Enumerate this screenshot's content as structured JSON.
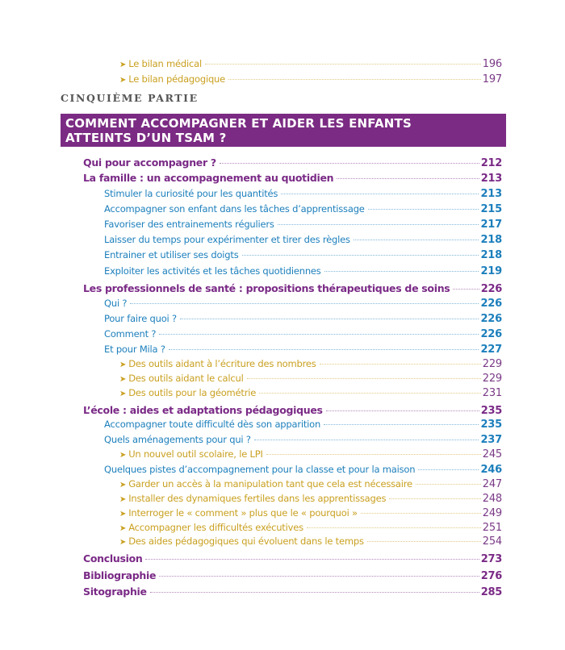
{
  "top_items": [
    {
      "label": "Le bilan médical",
      "page": "196"
    },
    {
      "label": "Le bilan pédagogique",
      "page": "197"
    }
  ],
  "part_label": "CINQUIÈME PARTIE",
  "part_title_line1": "COMMENT ACCOMPAGNER ET AIDER LES ENFANTS",
  "part_title_line2": "ATTEINTS D’UN TSAM ?",
  "colors": {
    "banner": "#7b2b83",
    "level1": "#7a2a86",
    "level2": "#1c7fbc",
    "level3": "#c9a020"
  },
  "entries": [
    {
      "level": 1,
      "label": "Qui pour accompagner ?",
      "page": "212"
    },
    {
      "level": 1,
      "label": "La famille : un accompagnement au quotidien",
      "page": "213"
    },
    {
      "level": 2,
      "label": "Stimuler la curiosité pour les quantités",
      "page": "213"
    },
    {
      "level": 2,
      "label": "Accompagner son enfant dans les tâches d’apprentissage",
      "page": "215"
    },
    {
      "level": 2,
      "label": "Favoriser des entrainements réguliers",
      "page": "217"
    },
    {
      "level": 2,
      "label": "Laisser du temps pour expérimenter et tirer des règles",
      "page": "218"
    },
    {
      "level": 2,
      "label": "Entrainer et utiliser ses doigts",
      "page": "218"
    },
    {
      "level": 2,
      "label": "Exploiter les activités et les tâches quotidiennes",
      "page": "219"
    },
    {
      "level": 1,
      "label": "Les professionnels de santé : propositions thérapeutiques de soins",
      "page": "226"
    },
    {
      "level": 2,
      "label": "Qui ?",
      "page": "226"
    },
    {
      "level": 2,
      "label": "Pour faire quoi ?",
      "page": "226"
    },
    {
      "level": 2,
      "label": "Comment ?",
      "page": "226"
    },
    {
      "level": 2,
      "label": "Et pour Mila ?",
      "page": "227"
    },
    {
      "level": 3,
      "label": "Des outils aidant à l’écriture des nombres",
      "page": "229"
    },
    {
      "level": 3,
      "label": "Des outils aidant le calcul",
      "page": "229"
    },
    {
      "level": 3,
      "label": "Des outils pour la géométrie",
      "page": "231"
    },
    {
      "level": 1,
      "label": "L’école : aides et adaptations pédagogiques",
      "page": "235"
    },
    {
      "level": 2,
      "label": "Accompagner toute difficulté dès son apparition",
      "page": "235"
    },
    {
      "level": 2,
      "label": "Quels aménagements pour qui ?",
      "page": "237"
    },
    {
      "level": 3,
      "label": "Un nouvel outil scolaire, le LPI",
      "page": "245"
    },
    {
      "level": 2,
      "label": "Quelques pistes d’accompagnement pour la classe et pour la maison",
      "page": "246"
    },
    {
      "level": 3,
      "label": "Garder un accès à la manipulation tant que cela est nécessaire",
      "page": "247"
    },
    {
      "level": 3,
      "label": "Installer des dynamiques fertiles dans les apprentissages",
      "page": "248"
    },
    {
      "level": 3,
      "label": "Interroger le « comment » plus que le « pourquoi »",
      "page": "249"
    },
    {
      "level": 3,
      "label": "Accompagner les difficultés exécutives",
      "page": "251"
    },
    {
      "level": 3,
      "label": "Des aides pédagogiques qui évoluent dans le temps",
      "page": "254"
    },
    {
      "level": 1,
      "label": "Conclusion",
      "page": "273"
    },
    {
      "level": 1,
      "label": "Bibliographie",
      "page": "276"
    },
    {
      "level": 1,
      "label": "Sitographie",
      "page": "285"
    }
  ]
}
